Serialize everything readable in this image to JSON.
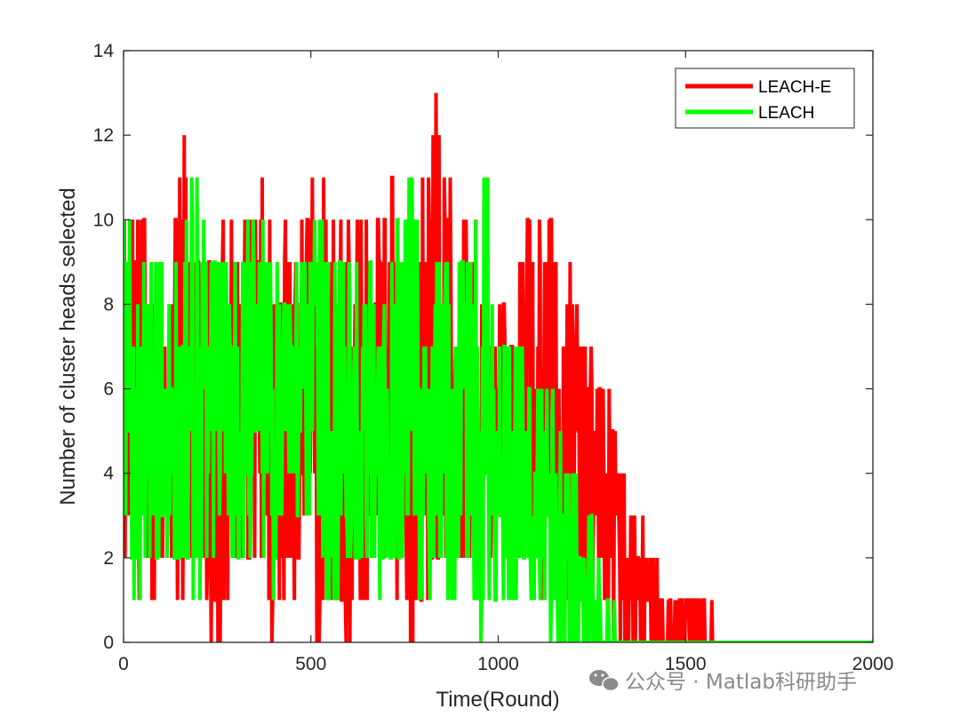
{
  "chart_data": {
    "type": "line",
    "xlabel": "Time(Round)",
    "ylabel": "Number of cluster heads selected",
    "xlim": [
      0,
      2000
    ],
    "ylim": [
      0,
      14
    ],
    "xticks": [
      "0",
      "500",
      "1000",
      "1500",
      "2000"
    ],
    "yticks": [
      "0",
      "2",
      "4",
      "6",
      "8",
      "10",
      "12",
      "14"
    ],
    "grid": false,
    "legend_position": "top-right",
    "series": [
      {
        "name": "LEACH-E",
        "color": "#ff0000",
        "x": [
          0,
          40,
          80,
          120,
          160,
          200,
          240,
          280,
          320,
          360,
          400,
          440,
          480,
          520,
          560,
          600,
          640,
          680,
          720,
          760,
          800,
          840,
          880,
          920,
          960,
          1000,
          1040,
          1080,
          1100,
          1120,
          1140,
          1160,
          1180,
          1200,
          1220,
          1240,
          1260,
          1280,
          1300,
          1320,
          1340,
          1360,
          1380,
          1400,
          1420,
          1440,
          1460,
          1480,
          1500,
          1540,
          1600,
          1800,
          2000
        ],
        "min": [
          1,
          1,
          1,
          2,
          1,
          2,
          0,
          1,
          2,
          2,
          0,
          1,
          2,
          0,
          1,
          0,
          1,
          2,
          1,
          0,
          1,
          2,
          1,
          2,
          1,
          2,
          2,
          2,
          2,
          1,
          2,
          2,
          1,
          2,
          1,
          1,
          1,
          1,
          0,
          0,
          0,
          0,
          0,
          0,
          0,
          0,
          0,
          0,
          0,
          0,
          0,
          0,
          0
        ],
        "max": [
          10,
          10,
          9,
          9,
          12,
          9,
          9,
          10,
          10,
          11,
          9,
          10,
          10,
          11,
          10,
          10,
          10,
          10,
          11,
          10,
          11,
          13,
          10,
          10,
          9,
          8,
          8,
          10,
          10,
          9,
          10,
          9,
          8,
          10,
          8,
          7,
          7,
          6,
          6,
          5,
          4,
          3,
          3,
          2,
          2,
          1,
          1,
          1,
          1,
          1,
          0,
          0,
          0
        ]
      },
      {
        "name": "LEACH",
        "color": "#00ff00",
        "x": [
          0,
          40,
          80,
          120,
          160,
          200,
          240,
          280,
          320,
          360,
          400,
          440,
          480,
          520,
          560,
          600,
          640,
          680,
          720,
          760,
          800,
          840,
          880,
          920,
          960,
          1000,
          1040,
          1080,
          1100,
          1120,
          1140,
          1160,
          1180,
          1200,
          1220,
          1240,
          1260,
          1280,
          1300,
          1320,
          1400,
          1600,
          1800,
          2000
        ],
        "min": [
          2,
          1,
          2,
          2,
          2,
          1,
          2,
          2,
          2,
          2,
          1,
          2,
          2,
          2,
          1,
          2,
          2,
          1,
          2,
          2,
          1,
          2,
          1,
          2,
          0,
          1,
          1,
          1,
          1,
          1,
          0,
          0,
          0,
          0,
          0,
          0,
          0,
          0,
          0,
          0,
          0,
          0,
          0,
          0
        ],
        "max": [
          10,
          9,
          9,
          9,
          10,
          11,
          9,
          9,
          9,
          11,
          9,
          9,
          9,
          10,
          9,
          9,
          9,
          9,
          9,
          11,
          9,
          9,
          9,
          9,
          12,
          7,
          7,
          7,
          6,
          6,
          6,
          5,
          4,
          4,
          3,
          3,
          2,
          1,
          1,
          0,
          0,
          0,
          0,
          0
        ]
      }
    ]
  },
  "watermark": {
    "text": "公众号 · Matlab科研助手",
    "icon": "wechat-icon"
  }
}
